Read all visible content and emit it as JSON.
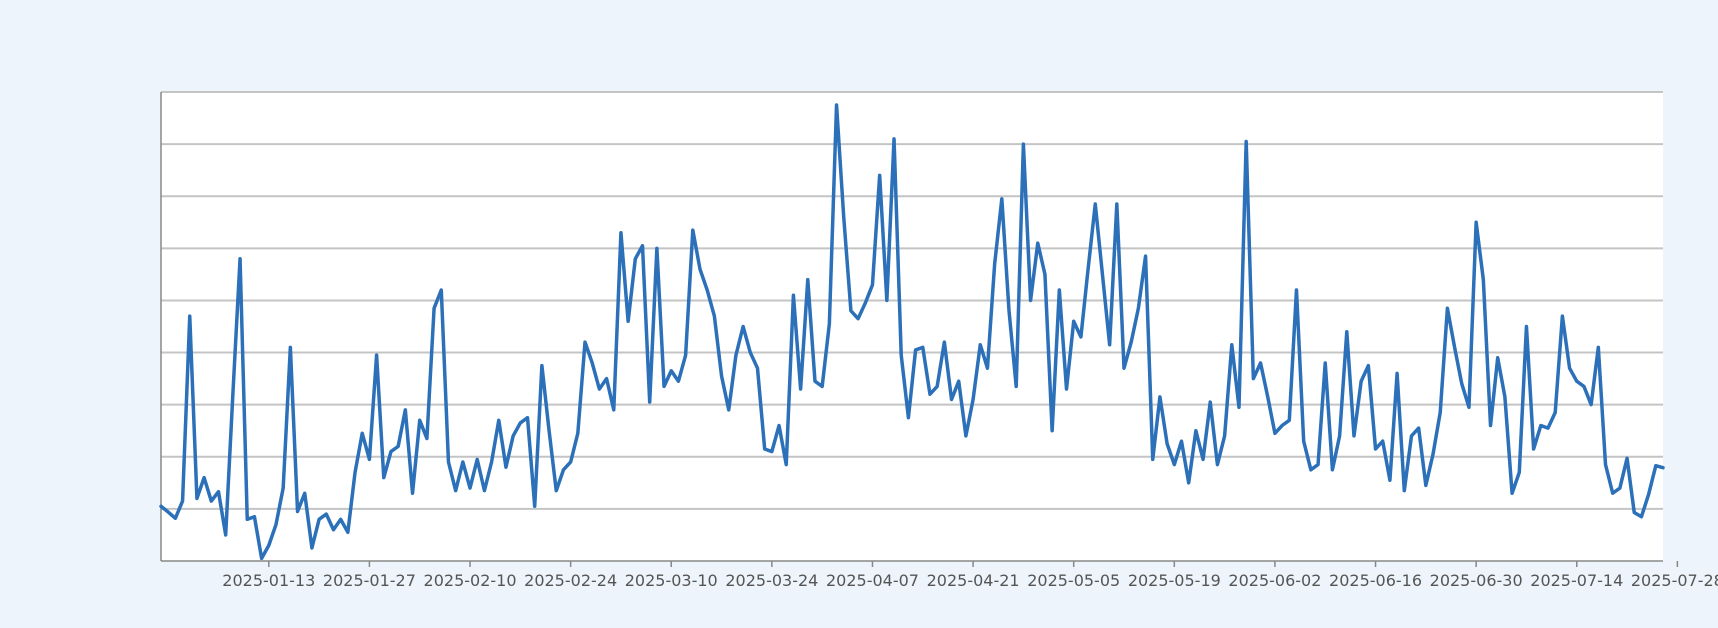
{
  "chart_data": {
    "type": "line",
    "title": "",
    "xlabel": "",
    "ylabel": "",
    "y_tick_labels_shown": false,
    "grid": true,
    "x_tick_labels": [
      "2025-01-13",
      "2025-01-27",
      "2025-02-10",
      "2025-02-24",
      "2025-03-10",
      "2025-03-24",
      "2025-04-07",
      "2025-04-21",
      "2025-05-05",
      "2025-05-19",
      "2025-06-02",
      "2025-06-16",
      "2025-06-30",
      "2025-07-14",
      "2025-07-28"
    ],
    "x_start": "2024-12-29",
    "x_step_days": 1,
    "ylim": [
      0,
      9
    ],
    "series": [
      {
        "color": "#2b70b8",
        "values": [
          1.05,
          0.94,
          0.82,
          1.15,
          4.7,
          1.2,
          1.6,
          1.15,
          1.33,
          0.5,
          3.2,
          5.8,
          0.8,
          0.85,
          0.05,
          0.3,
          0.7,
          1.4,
          4.1,
          0.95,
          1.3,
          0.25,
          0.8,
          0.9,
          0.6,
          0.8,
          0.55,
          1.7,
          2.45,
          1.95,
          3.95,
          1.6,
          2.1,
          2.2,
          2.9,
          1.3,
          2.7,
          2.35,
          4.85,
          5.2,
          1.9,
          1.35,
          1.9,
          1.4,
          1.95,
          1.35,
          1.9,
          2.7,
          1.8,
          2.4,
          2.65,
          2.75,
          1.05,
          3.75,
          2.5,
          1.35,
          1.75,
          1.9,
          2.45,
          4.2,
          3.8,
          3.3,
          3.5,
          2.9,
          6.3,
          4.6,
          5.8,
          6.05,
          3.05,
          6.0,
          3.35,
          3.65,
          3.45,
          3.95,
          6.35,
          5.6,
          5.2,
          4.7,
          3.55,
          2.9,
          3.95,
          4.5,
          4.0,
          3.7,
          2.15,
          2.1,
          2.6,
          1.85,
          5.1,
          3.3,
          5.4,
          3.45,
          3.35,
          4.55,
          8.75,
          6.6,
          4.8,
          4.65,
          4.95,
          5.3,
          7.4,
          5.0,
          8.1,
          3.95,
          2.75,
          4.05,
          4.1,
          3.2,
          3.35,
          4.2,
          3.1,
          3.45,
          2.4,
          3.1,
          4.15,
          3.7,
          5.7,
          6.95,
          4.8,
          3.35,
          8.0,
          5.0,
          6.1,
          5.5,
          2.5,
          5.2,
          3.3,
          4.6,
          4.3,
          5.6,
          6.85,
          5.5,
          4.15,
          6.85,
          3.7,
          4.2,
          4.85,
          5.85,
          1.95,
          3.15,
          2.25,
          1.85,
          2.3,
          1.5,
          2.5,
          1.95,
          3.05,
          1.85,
          2.4,
          4.15,
          2.95,
          8.05,
          3.5,
          3.8,
          3.15,
          2.45,
          2.6,
          2.7,
          5.2,
          2.3,
          1.75,
          1.85,
          3.8,
          1.75,
          2.4,
          4.4,
          2.4,
          3.45,
          3.75,
          2.15,
          2.3,
          1.55,
          3.6,
          1.35,
          2.4,
          2.55,
          1.45,
          2.05,
          2.85,
          4.85,
          4.1,
          3.4,
          2.95,
          6.5,
          5.4,
          2.6,
          3.9,
          3.15,
          1.3,
          1.7,
          4.5,
          2.15,
          2.6,
          2.55,
          2.85,
          4.7,
          3.7,
          3.45,
          3.35,
          3.0,
          4.1,
          1.85,
          1.3,
          1.4,
          1.97,
          0.93,
          0.85,
          1.28,
          1.83,
          1.79
        ]
      }
    ]
  }
}
